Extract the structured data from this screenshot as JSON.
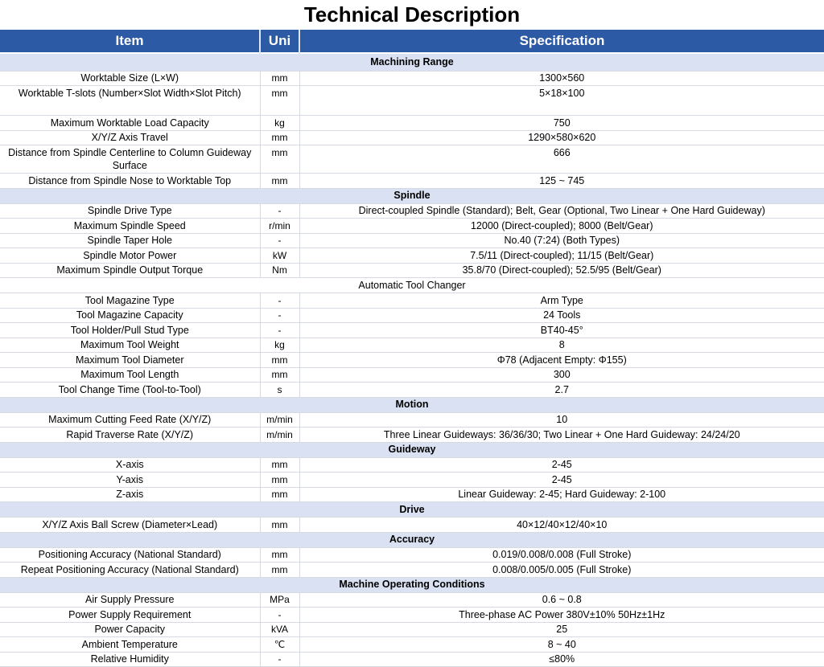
{
  "title": "Technical Description",
  "colors": {
    "header_bg": "#2d5aa4",
    "band_bg": "#d9e1f2",
    "border": "#d5dae3",
    "header_text": "#ffffff"
  },
  "table": {
    "columns": [
      "Item",
      "Uni",
      "Specification"
    ],
    "sections": [
      {
        "title": "Machining Range",
        "variant": "blue",
        "band_h": 22,
        "rows": [
          {
            "item": "Worktable Size (L×W)",
            "unit": "mm",
            "spec": "1300×560"
          },
          {
            "item": "Worktable T-slots (Number×Slot Width×Slot Pitch)",
            "unit": "mm",
            "spec": "5×18×100",
            "h": 37,
            "top": true
          },
          {
            "item": "Maximum Worktable Load Capacity",
            "unit": "kg",
            "spec": "750",
            "h": 18
          },
          {
            "item": "X/Y/Z Axis Travel",
            "unit": "mm",
            "spec": "1290×580×620"
          },
          {
            "item": "Distance from Spindle Centerline to Column Guideway Surface",
            "unit": "mm",
            "spec": "666",
            "h": 35,
            "top": true
          },
          {
            "item": "Distance from Spindle Nose to Worktable Top",
            "unit": "mm",
            "spec": "125 ~ 745",
            "h": 18
          }
        ]
      },
      {
        "title": "Spindle",
        "variant": "blue",
        "rows": [
          {
            "item": "Spindle Drive Type",
            "unit": "-",
            "spec": "Direct-coupled Spindle (Standard); Belt, Gear (Optional, Two Linear + One Hard Guideway)"
          },
          {
            "item": "Maximum Spindle Speed",
            "unit": "r/min",
            "spec": "12000 (Direct-coupled); 8000 (Belt/Gear)"
          },
          {
            "item": "Spindle Taper Hole",
            "unit": "-",
            "spec": "No.40 (7:24) (Both Types)"
          },
          {
            "item": "Spindle Motor Power",
            "unit": "kW",
            "spec": "7.5/11 (Direct-coupled); 11/15 (Belt/Gear)"
          },
          {
            "item": "Maximum Spindle Output Torque",
            "unit": "Nm",
            "spec": "35.8/70 (Direct-coupled); 52.5/95 (Belt/Gear)"
          }
        ]
      },
      {
        "title": "Automatic Tool Changer",
        "variant": "plain",
        "band_h": 17,
        "rows": [
          {
            "item": "Tool Magazine Type",
            "unit": "-",
            "spec": "Arm Type"
          },
          {
            "item": "Tool Magazine Capacity",
            "unit": "-",
            "spec": "24 Tools"
          },
          {
            "item": "Tool Holder/Pull Stud Type",
            "unit": "-",
            "spec": "BT40-45°"
          },
          {
            "item": "Maximum Tool Weight",
            "unit": "kg",
            "spec": "8"
          },
          {
            "item": "Maximum Tool Diameter",
            "unit": "mm",
            "spec": "Φ78 (Adjacent Empty: Φ155)"
          },
          {
            "item": "Maximum Tool Length",
            "unit": "mm",
            "spec": "300"
          },
          {
            "item": "Tool Change Time (Tool-to-Tool)",
            "unit": "s",
            "spec": "2.7"
          }
        ]
      },
      {
        "title": "Motion",
        "variant": "blue",
        "rows": [
          {
            "item": "Maximum Cutting Feed Rate (X/Y/Z)",
            "unit": "m/min",
            "spec": "10"
          },
          {
            "item": "Rapid Traverse Rate (X/Y/Z)",
            "unit": "m/min",
            "spec": "Three Linear Guideways: 36/36/30; Two Linear + One Hard Guideway: 24/24/20"
          }
        ]
      },
      {
        "title": "Guideway",
        "variant": "blue",
        "rows": [
          {
            "item": "X-axis",
            "unit": "mm",
            "spec": "2-45"
          },
          {
            "item": "Y-axis",
            "unit": "mm",
            "spec": "2-45"
          },
          {
            "item": "Z-axis",
            "unit": "mm",
            "spec": "Linear Guideway: 2-45; Hard Guideway: 2-100"
          }
        ]
      },
      {
        "title": "Drive",
        "variant": "blue",
        "rows": [
          {
            "item": "X/Y/Z Axis Ball Screw (Diameter×Lead)",
            "unit": "mm",
            "spec": "40×12/40×12/40×10",
            "h": 18
          }
        ]
      },
      {
        "title": "Accuracy",
        "variant": "blue",
        "rows": [
          {
            "item": "Positioning Accuracy (National Standard)",
            "unit": "mm",
            "spec": "0.019/0.008/0.008 (Full Stroke)"
          },
          {
            "item": "Repeat Positioning Accuracy (National Standard)",
            "unit": "mm",
            "spec": "0.008/0.005/0.005 (Full Stroke)"
          }
        ]
      },
      {
        "title": "Machine Operating Conditions",
        "variant": "blue",
        "rows": [
          {
            "item": "Air Supply Pressure",
            "unit": "MPa",
            "spec": "0.6 ~ 0.8"
          },
          {
            "item": "Power Supply Requirement",
            "unit": "-",
            "spec": "Three-phase AC Power 380V±10% 50Hz±1Hz"
          },
          {
            "item": "Power Capacity",
            "unit": "kVA",
            "spec": "25"
          },
          {
            "item": "Ambient Temperature",
            "unit": "℃",
            "spec": "8 ~ 40"
          },
          {
            "item": "Relative Humidity",
            "unit": "-",
            "spec": "≤80%"
          }
        ]
      }
    ]
  }
}
